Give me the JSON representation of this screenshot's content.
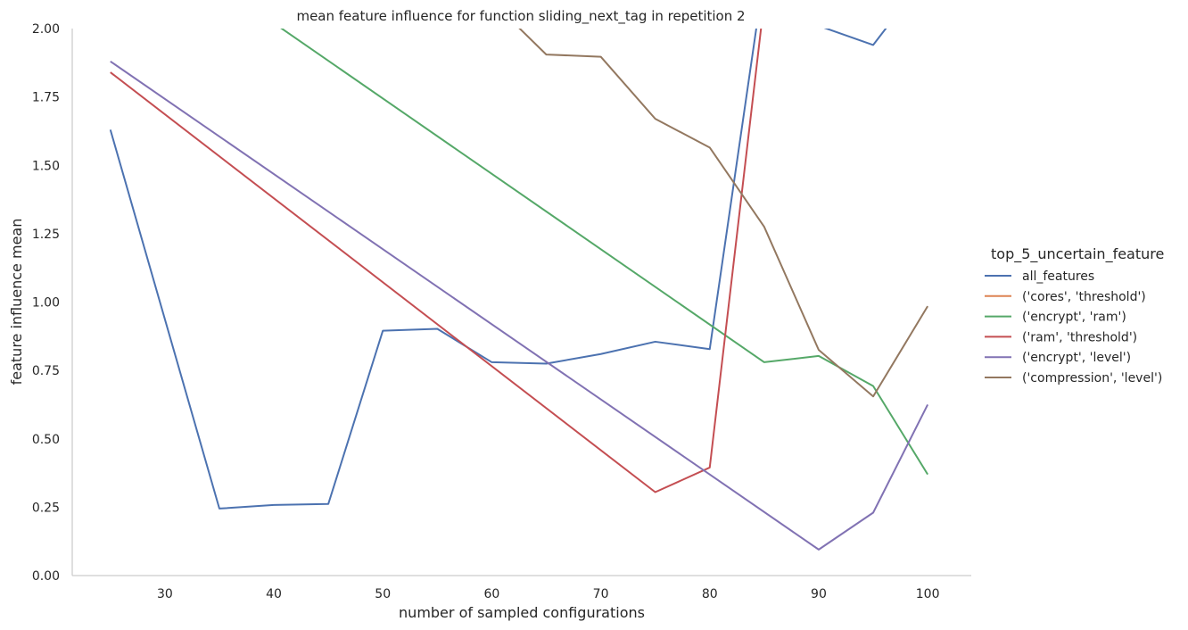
{
  "chart_data": {
    "type": "line",
    "title": "mean feature influence for function sliding_next_tag in repetition 2",
    "xlabel": "number of sampled configurations",
    "ylabel": "feature influence mean",
    "xlim": [
      21.5,
      104
    ],
    "ylim": [
      0,
      2
    ],
    "xticks": [
      30,
      40,
      50,
      60,
      70,
      80,
      90,
      100
    ],
    "yticks": [
      0,
      0.25,
      0.5,
      0.75,
      1.0,
      1.25,
      1.5,
      1.75,
      2.0
    ],
    "ytick_labels": [
      "0.00",
      "0.25",
      "0.50",
      "0.75",
      "1.00",
      "1.25",
      "1.50",
      "1.75",
      "2.00"
    ],
    "grid": false,
    "legend": {
      "title": "top_5_uncertain_feature",
      "placement": "right"
    },
    "series": [
      {
        "name": "all_features",
        "color": "#4c72b0",
        "points": [
          [
            25,
            1.63
          ],
          [
            35,
            0.245
          ],
          [
            40,
            0.258
          ],
          [
            45,
            0.262
          ],
          [
            50,
            0.895
          ],
          [
            55,
            0.902
          ],
          [
            60,
            0.78
          ],
          [
            65,
            0.775
          ],
          [
            70,
            0.81
          ],
          [
            75,
            0.855
          ],
          [
            80,
            0.828
          ],
          [
            85,
            2.2
          ],
          [
            90,
            2.01
          ],
          [
            95,
            1.94
          ],
          [
            100,
            2.2
          ]
        ]
      },
      {
        "name": "('cores', 'threshold')",
        "color": "#dd8452",
        "points": []
      },
      {
        "name": "('encrypt', 'ram')",
        "color": "#55a868",
        "points": [
          [
            25,
            2.4
          ],
          [
            40,
            2.02
          ],
          [
            85,
            0.78
          ],
          [
            90,
            0.803
          ],
          [
            95,
            0.693
          ],
          [
            100,
            0.37
          ]
        ]
      },
      {
        "name": "('ram', 'threshold')",
        "color": "#c44e52",
        "points": [
          [
            25,
            1.84
          ],
          [
            75,
            0.305
          ],
          [
            80,
            0.395
          ],
          [
            85,
            2.1
          ]
        ]
      },
      {
        "name": "('encrypt', 'level')",
        "color": "#8172b3",
        "points": [
          [
            25,
            1.88
          ],
          [
            90,
            0.095
          ],
          [
            95,
            0.23
          ],
          [
            100,
            0.625
          ]
        ]
      },
      {
        "name": "('compression', 'level')",
        "color": "#937860",
        "points": [
          [
            60,
            2.1
          ],
          [
            65,
            1.905
          ],
          [
            70,
            1.897
          ],
          [
            75,
            1.67
          ],
          [
            80,
            1.565
          ],
          [
            85,
            1.275
          ],
          [
            90,
            0.825
          ],
          [
            95,
            0.655
          ],
          [
            100,
            0.985
          ]
        ]
      }
    ]
  }
}
